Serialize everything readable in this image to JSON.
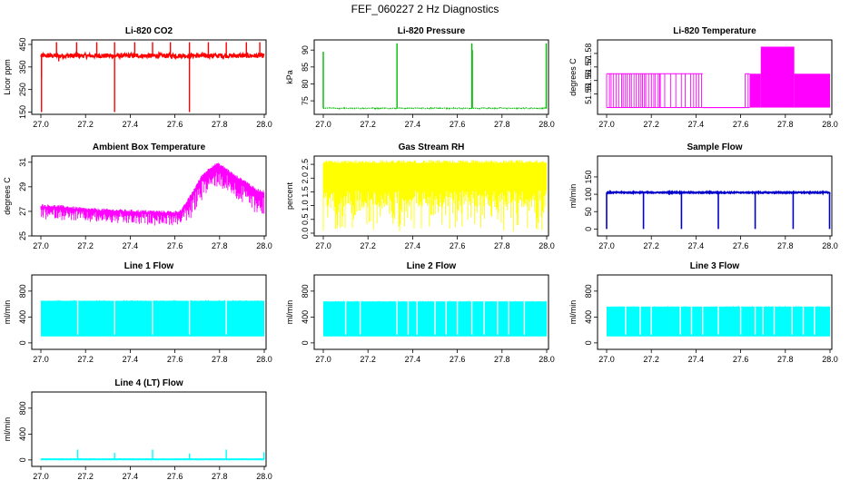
{
  "title": "FEF_060227  2 Hz Diagnostics",
  "chart_data": [
    {
      "type": "line",
      "title": "Li-820 CO2",
      "ylabel": "Licor ppm",
      "color": "#ff0000",
      "xlim": [
        27.0,
        28.0
      ],
      "ylim": [
        140,
        470
      ],
      "x_ticks": [
        "27.0",
        "27.2",
        "27.4",
        "27.6",
        "27.8",
        "28.0"
      ],
      "y_ticks": [
        "150",
        "250",
        "350",
        "450"
      ],
      "baseline": 400,
      "noise": 10,
      "line_width": 1.5,
      "spikes": [
        {
          "x": 27.003,
          "y": 150
        },
        {
          "x": 27.003,
          "y": 300
        },
        {
          "x": 27.07,
          "y": 460
        },
        {
          "x": 27.08,
          "y": 375
        },
        {
          "x": 27.16,
          "y": 460
        },
        {
          "x": 27.25,
          "y": 460
        },
        {
          "x": 27.33,
          "y": 150
        },
        {
          "x": 27.33,
          "y": 460
        },
        {
          "x": 27.42,
          "y": 460
        },
        {
          "x": 27.5,
          "y": 460
        },
        {
          "x": 27.58,
          "y": 460
        },
        {
          "x": 27.665,
          "y": 150
        },
        {
          "x": 27.665,
          "y": 460
        },
        {
          "x": 27.75,
          "y": 460
        },
        {
          "x": 27.83,
          "y": 460
        },
        {
          "x": 27.92,
          "y": 460
        },
        {
          "x": 27.98,
          "y": 460
        }
      ]
    },
    {
      "type": "line",
      "title": "Li-820 Pressure",
      "ylabel": "kPa",
      "color": "#00bb00",
      "xlim": [
        27.0,
        28.0
      ],
      "ylim": [
        71,
        93
      ],
      "x_ticks": [
        "27.0",
        "27.2",
        "27.4",
        "27.6",
        "27.8",
        "28.0"
      ],
      "y_ticks": [
        "75",
        "80",
        "85",
        "90"
      ],
      "baseline": 72.8,
      "noise": 0.15,
      "dotted": true,
      "line_width": 1,
      "spikes": [
        {
          "x": 27.0,
          "y": 89.5
        },
        {
          "x": 27.33,
          "y": 92
        },
        {
          "x": 27.665,
          "y": 92
        },
        {
          "x": 27.667,
          "y": 90
        },
        {
          "x": 27.998,
          "y": 92
        }
      ]
    },
    {
      "type": "step",
      "title": "Li-820 Temperature",
      "ylabel": "degrees C",
      "color": "#ff00ff",
      "xlim": [
        27.0,
        28.0
      ],
      "ylim": [
        51.535,
        51.59
      ],
      "x_ticks": [
        "27.0",
        "27.2",
        "27.4",
        "27.6",
        "27.8",
        "28.0"
      ],
      "y_ticks": [
        "51.55",
        "51.56",
        "51.57",
        "51.58"
      ],
      "low": 51.54,
      "mid": 51.565,
      "high": 51.585,
      "segments": [
        {
          "x0": 27.0,
          "x1": 27.24,
          "level": "low_mid"
        },
        {
          "x0": 27.24,
          "x1": 27.43,
          "level": "low_mid_sparse"
        },
        {
          "x0": 27.43,
          "x1": 27.62,
          "level": "low"
        },
        {
          "x0": 27.62,
          "x1": 27.64,
          "level": "low_mid_sparse"
        },
        {
          "x0": 27.64,
          "x1": 27.69,
          "level": "mid_solid"
        },
        {
          "x0": 27.69,
          "x1": 27.84,
          "level": "high_solid"
        },
        {
          "x0": 27.84,
          "x1": 28.0,
          "level": "mid_solid"
        }
      ]
    },
    {
      "type": "band",
      "title": "Ambient Box Temperature",
      "ylabel": "degrees C",
      "color": "#ff00ff",
      "xlim": [
        27.0,
        28.0
      ],
      "ylim": [
        25,
        31.5
      ],
      "x_ticks": [
        "27.0",
        "27.2",
        "27.4",
        "27.6",
        "27.8",
        "28.0"
      ],
      "y_ticks": [
        "25",
        "27",
        "29",
        "31"
      ],
      "upper": [
        [
          27.0,
          27.5
        ],
        [
          27.1,
          27.4
        ],
        [
          27.2,
          27.2
        ],
        [
          27.4,
          27.05
        ],
        [
          27.6,
          26.95
        ],
        [
          27.63,
          27.1
        ],
        [
          27.68,
          28.6
        ],
        [
          27.72,
          29.9
        ],
        [
          27.76,
          30.6
        ],
        [
          27.79,
          30.9
        ],
        [
          27.82,
          30.6
        ],
        [
          27.87,
          29.9
        ],
        [
          27.92,
          29.4
        ],
        [
          27.96,
          28.8
        ],
        [
          28.0,
          28.6
        ]
      ],
      "depth": 0.9,
      "depth_late": 1.6
    },
    {
      "type": "band",
      "title": "Gas Stream RH",
      "ylabel": "percent",
      "color": "#ffff00",
      "xlim": [
        27.0,
        28.0
      ],
      "ylim": [
        -0.1,
        2.8
      ],
      "x_ticks": [
        "27.0",
        "27.2",
        "27.4",
        "27.6",
        "27.8",
        "28.0"
      ],
      "y_ticks": [
        "0.0",
        "0.5",
        "1.0",
        "1.5",
        "2.0",
        "2.5"
      ],
      "upper": [
        [
          27.0,
          2.55
        ],
        [
          28.0,
          2.55
        ]
      ],
      "fill_low": 1.55,
      "deep_low": 0.05
    },
    {
      "type": "line",
      "title": "Sample Flow",
      "ylabel": "ml/min",
      "color": "#0000cc",
      "xlim": [
        27.0,
        28.0
      ],
      "ylim": [
        -20,
        210
      ],
      "x_ticks": [
        "27.0",
        "27.2",
        "27.4",
        "27.6",
        "27.8",
        "28.0"
      ],
      "y_ticks": [
        "0",
        "50",
        "100",
        "150"
      ],
      "baseline": 105,
      "noise": 1.5,
      "line_width": 2,
      "drops": [
        27.0,
        27.165,
        27.335,
        27.5,
        27.665,
        27.835,
        27.998
      ],
      "drop_to": 0
    },
    {
      "type": "band",
      "title": "Line 1 Flow",
      "ylabel": "ml/min",
      "color": "#00ffff",
      "xlim": [
        27.0,
        28.0
      ],
      "ylim": [
        -100,
        1050
      ],
      "x_ticks": [
        "27.0",
        "27.2",
        "27.4",
        "27.6",
        "27.8",
        "28.0"
      ],
      "y_ticks": [
        "0",
        "400",
        "800"
      ],
      "top": 650,
      "bottom": 100,
      "gaps": [
        27.165,
        27.33,
        27.5,
        27.665,
        27.83
      ]
    },
    {
      "type": "band",
      "title": "Line 2 Flow",
      "ylabel": "ml/min",
      "color": "#00ffff",
      "xlim": [
        27.0,
        28.0
      ],
      "ylim": [
        -100,
        1050
      ],
      "x_ticks": [
        "27.0",
        "27.2",
        "27.4",
        "27.6",
        "27.8",
        "28.0"
      ],
      "y_ticks": [
        "0",
        "400",
        "800"
      ],
      "top": 640,
      "bottom": 100,
      "gaps": [
        27.1,
        27.165,
        27.33,
        27.38,
        27.42,
        27.5,
        27.55,
        27.6,
        27.665,
        27.72,
        27.78,
        27.83,
        27.9
      ]
    },
    {
      "type": "band",
      "title": "Line 3 Flow",
      "ylabel": "ml/min",
      "color": "#00ffff",
      "xlim": [
        27.0,
        28.0
      ],
      "ylim": [
        -100,
        1050
      ],
      "x_ticks": [
        "27.0",
        "27.2",
        "27.4",
        "27.6",
        "27.8",
        "28.0"
      ],
      "y_ticks": [
        "0",
        "400",
        "800"
      ],
      "top": 560,
      "bottom": 100,
      "gaps": [
        27.085,
        27.15,
        27.2,
        27.33,
        27.38,
        27.43,
        27.5,
        27.6,
        27.665,
        27.7,
        27.75,
        27.83,
        27.88,
        27.93
      ]
    },
    {
      "type": "line",
      "title": "Line 4 (LT) Flow",
      "ylabel": "ml/min",
      "color": "#00ffff",
      "xlim": [
        27.0,
        28.0
      ],
      "ylim": [
        -100,
        1050
      ],
      "x_ticks": [
        "27.0",
        "27.2",
        "27.4",
        "27.6",
        "27.8",
        "28.0"
      ],
      "y_ticks": [
        "0",
        "400",
        "800"
      ],
      "baseline": 10,
      "noise": 2,
      "line_width": 2,
      "spikes": [
        {
          "x": 27.165,
          "y": 160
        },
        {
          "x": 27.33,
          "y": 110
        },
        {
          "x": 27.5,
          "y": 160
        },
        {
          "x": 27.665,
          "y": 100
        },
        {
          "x": 27.83,
          "y": 160
        },
        {
          "x": 27.998,
          "y": 120
        }
      ]
    }
  ]
}
